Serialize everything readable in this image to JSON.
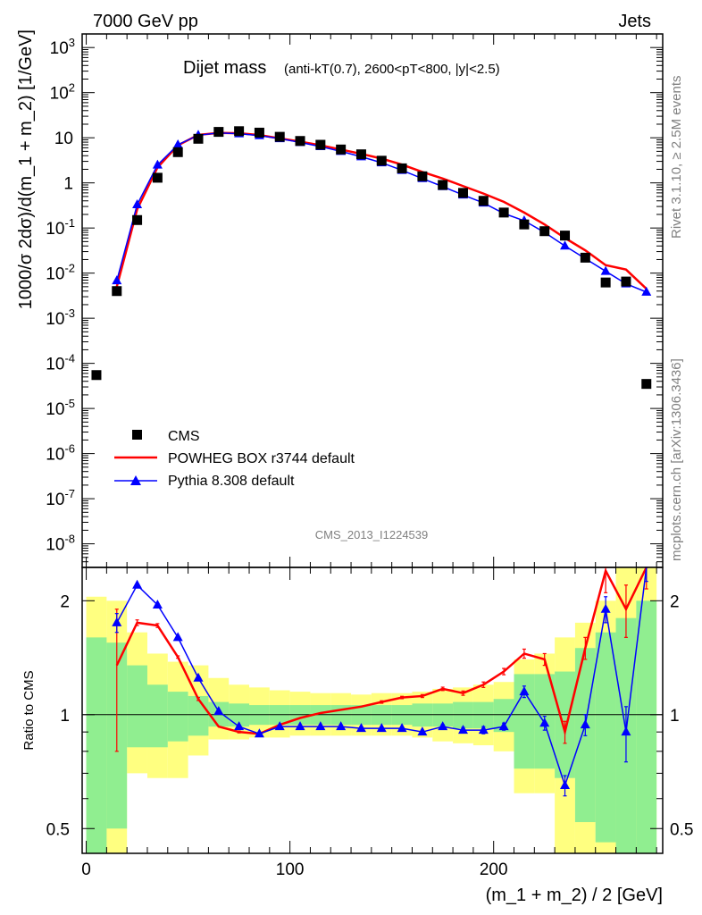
{
  "header": {
    "left": "7000 GeV pp",
    "right": "Jets"
  },
  "side_labels": {
    "rivet": "Rivet 3.1.10, ≥ 2.5M events",
    "mcplots": "mcplots.cern.ch [arXiv:1306.3436]"
  },
  "chart_data": [
    {
      "type": "scatter",
      "title_main": "Dijet mass",
      "title_sub": "(anti-kT(0.7), 2600<pT<800, |y|<2.5)",
      "ylabel": "1000/σ 2dσ)/d(m_1 + m_2) [1/GeV]",
      "yscale": "log",
      "ylim": [
        3e-09,
        2000
      ],
      "xlim": [
        -2,
        283
      ],
      "watermark": "CMS_2013_I1224539",
      "legend_placement": "bottom-left",
      "ytick_exponents": [
        -8,
        -7,
        -6,
        -5,
        -4,
        -3,
        -2,
        -1,
        0,
        1,
        2,
        3
      ],
      "series": [
        {
          "name": "CMS",
          "color": "#000000",
          "marker": "square",
          "x": [
            5,
            15,
            25,
            35,
            45,
            55,
            65,
            75,
            85,
            95,
            105,
            115,
            125,
            135,
            145,
            155,
            165,
            175,
            185,
            195,
            205,
            215,
            225,
            235,
            245,
            255,
            265,
            275
          ],
          "y": [
            5.5e-05,
            0.004,
            0.15,
            1.3,
            4.8,
            9.5,
            13.5,
            14.0,
            13.0,
            10.5,
            8.5,
            7.0,
            5.5,
            4.3,
            3.1,
            2.1,
            1.4,
            0.9,
            0.6,
            0.4,
            0.22,
            0.12,
            0.085,
            0.068,
            0.022,
            0.0062,
            0.0065,
            3.5e-05
          ]
        },
        {
          "name": "POWHEG BOX r3744 default",
          "color": "#ff0000",
          "marker": "line",
          "x": [
            15,
            25,
            35,
            45,
            55,
            65,
            75,
            85,
            95,
            105,
            115,
            125,
            135,
            145,
            155,
            165,
            175,
            185,
            195,
            205,
            215,
            225,
            235,
            245,
            255,
            265,
            275
          ],
          "y": [
            0.005,
            0.26,
            2.2,
            6.8,
            11.6,
            12.8,
            12.6,
            11.5,
            9.7,
            8.2,
            6.8,
            5.5,
            4.4,
            3.45,
            2.55,
            1.75,
            1.25,
            0.85,
            0.58,
            0.38,
            0.22,
            0.12,
            0.06,
            0.032,
            0.015,
            0.012,
            0.0045
          ]
        },
        {
          "name": "Pythia 8.308 default",
          "color": "#0000ff",
          "marker": "triangle",
          "x": [
            15,
            25,
            35,
            45,
            55,
            65,
            75,
            85,
            95,
            105,
            115,
            125,
            135,
            145,
            155,
            165,
            175,
            185,
            195,
            205,
            215,
            225,
            235,
            245,
            255,
            265,
            275
          ],
          "y": [
            0.0068,
            0.33,
            2.5,
            7.0,
            11.4,
            12.8,
            12.3,
            11.2,
            9.6,
            7.9,
            6.4,
            5.0,
            3.8,
            2.8,
            1.9,
            1.25,
            0.83,
            0.54,
            0.36,
            0.21,
            0.145,
            0.08,
            0.04,
            0.021,
            0.011,
            0.0058,
            0.0038
          ]
        }
      ]
    },
    {
      "type": "line",
      "ylabel": "Ratio to CMS",
      "yscale": "log",
      "ylim": [
        0.43,
        2.45
      ],
      "xlim": [
        -2,
        283
      ],
      "xlabel": "(m_1 + m_2) / 2 [GeV]",
      "xticks": [
        0,
        100,
        200
      ],
      "xtick_labels": [
        "0",
        "100",
        "200"
      ],
      "yticks": [
        0.5,
        1,
        2
      ],
      "ytick_labels": [
        "0.5",
        "1",
        "2"
      ],
      "bands": {
        "bin_edges": [
          0,
          10,
          20,
          30,
          40,
          50,
          60,
          70,
          80,
          90,
          100,
          110,
          120,
          130,
          140,
          150,
          160,
          170,
          180,
          190,
          200,
          210,
          220,
          230,
          240,
          250,
          260,
          270,
          280
        ],
        "stat_color": "#90ee90",
        "total_color": "#ffff80",
        "stat": [
          [
            0.43,
            1.6
          ],
          [
            0.5,
            1.55
          ],
          [
            0.82,
            1.35
          ],
          [
            0.82,
            1.2
          ],
          [
            0.85,
            1.15
          ],
          [
            0.88,
            1.12
          ],
          [
            0.93,
            1.08
          ],
          [
            0.93,
            1.07
          ],
          [
            0.94,
            1.06
          ],
          [
            0.94,
            1.06
          ],
          [
            0.94,
            1.06
          ],
          [
            0.94,
            1.06
          ],
          [
            0.94,
            1.06
          ],
          [
            0.94,
            1.06
          ],
          [
            0.94,
            1.06
          ],
          [
            0.94,
            1.06
          ],
          [
            0.93,
            1.07
          ],
          [
            0.93,
            1.07
          ],
          [
            0.92,
            1.08
          ],
          [
            0.92,
            1.08
          ],
          [
            0.9,
            1.1
          ],
          [
            0.72,
            1.28
          ],
          [
            0.72,
            1.28
          ],
          [
            0.68,
            1.3
          ],
          [
            0.52,
            1.5
          ],
          [
            0.46,
            1.65
          ],
          [
            0.43,
            1.8
          ],
          [
            0.43,
            2.0
          ]
        ],
        "total": [
          [
            0.43,
            2.05
          ],
          [
            0.43,
            2.0
          ],
          [
            0.7,
            1.65
          ],
          [
            0.68,
            1.45
          ],
          [
            0.68,
            1.38
          ],
          [
            0.78,
            1.35
          ],
          [
            0.86,
            1.25
          ],
          [
            0.86,
            1.2
          ],
          [
            0.87,
            1.18
          ],
          [
            0.87,
            1.16
          ],
          [
            0.88,
            1.15
          ],
          [
            0.88,
            1.14
          ],
          [
            0.88,
            1.14
          ],
          [
            0.88,
            1.13
          ],
          [
            0.88,
            1.14
          ],
          [
            0.88,
            1.14
          ],
          [
            0.87,
            1.15
          ],
          [
            0.85,
            1.17
          ],
          [
            0.84,
            1.18
          ],
          [
            0.83,
            1.2
          ],
          [
            0.8,
            1.22
          ],
          [
            0.62,
            1.4
          ],
          [
            0.62,
            1.45
          ],
          [
            0.43,
            1.6
          ],
          [
            0.43,
            1.75
          ],
          [
            0.43,
            2.0
          ],
          [
            0.43,
            2.45
          ],
          [
            0.43,
            2.45
          ]
        ]
      },
      "series": [
        {
          "name": "POWHEG BOX r3744 default",
          "color": "#ff0000",
          "x": [
            15,
            25,
            35,
            45,
            55,
            65,
            75,
            85,
            95,
            105,
            115,
            125,
            135,
            145,
            155,
            165,
            175,
            185,
            195,
            205,
            215,
            225,
            235,
            245,
            255,
            265,
            275
          ],
          "y": [
            1.35,
            1.75,
            1.72,
            1.42,
            1.1,
            0.93,
            0.9,
            0.89,
            0.94,
            0.98,
            1.01,
            1.03,
            1.05,
            1.08,
            1.11,
            1.12,
            1.17,
            1.14,
            1.2,
            1.3,
            1.45,
            1.4,
            0.9,
            1.5,
            2.4,
            1.9,
            2.45
          ],
          "err": [
            0.55,
            0.03,
            0.02,
            0.01,
            0.01,
            0.005,
            0.005,
            0.005,
            0.005,
            0.005,
            0.005,
            0.005,
            0.005,
            0.008,
            0.008,
            0.01,
            0.012,
            0.015,
            0.02,
            0.025,
            0.04,
            0.05,
            0.06,
            0.1,
            0.3,
            0.3,
            0.3
          ]
        },
        {
          "name": "Pythia 8.308 default",
          "color": "#0000ff",
          "x": [
            15,
            25,
            35,
            45,
            55,
            65,
            75,
            85,
            95,
            105,
            115,
            125,
            135,
            145,
            155,
            165,
            175,
            185,
            195,
            205,
            215,
            225,
            235,
            245,
            255,
            265,
            275
          ],
          "y": [
            1.75,
            2.2,
            1.95,
            1.6,
            1.25,
            1.02,
            0.93,
            0.89,
            0.93,
            0.93,
            0.93,
            0.93,
            0.92,
            0.92,
            0.92,
            0.9,
            0.93,
            0.91,
            0.91,
            0.93,
            1.15,
            0.95,
            0.65,
            0.94,
            1.9,
            0.9,
            2.45
          ],
          "err": [
            0.1,
            0.02,
            0.015,
            0.01,
            0.01,
            0.005,
            0.005,
            0.005,
            0.005,
            0.005,
            0.005,
            0.005,
            0.005,
            0.008,
            0.008,
            0.01,
            0.012,
            0.015,
            0.02,
            0.02,
            0.04,
            0.04,
            0.04,
            0.06,
            0.15,
            0.15,
            0.2
          ]
        }
      ]
    }
  ]
}
